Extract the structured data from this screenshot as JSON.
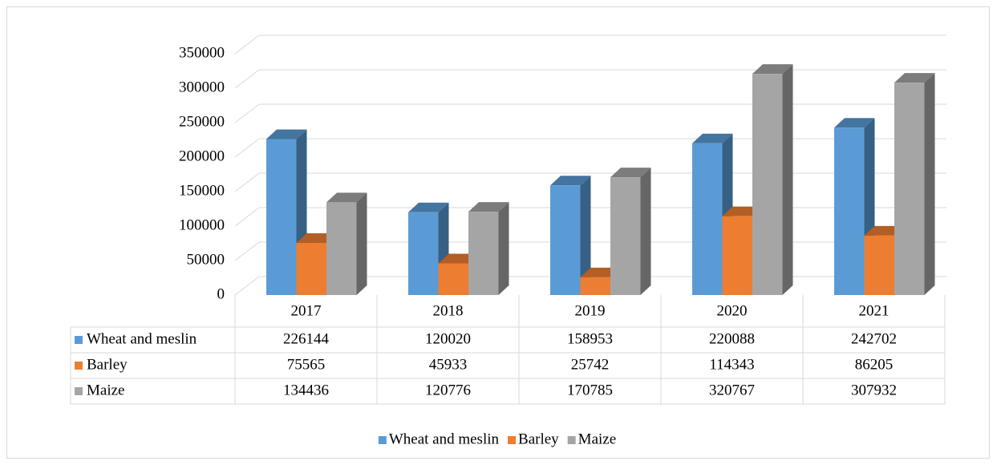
{
  "chart_data": {
    "type": "bar3d",
    "categories": [
      "2017",
      "2018",
      "2019",
      "2020",
      "2021"
    ],
    "series": [
      {
        "name": "Wheat and meslin",
        "color": "#5b9bd5",
        "values": [
          226144,
          120020,
          158953,
          220088,
          242702
        ]
      },
      {
        "name": "Barley",
        "color": "#ed7d31",
        "values": [
          75565,
          45933,
          25742,
          114343,
          86205
        ]
      },
      {
        "name": "Maize",
        "color": "#a5a5a5",
        "values": [
          134436,
          120776,
          170785,
          320767,
          307932
        ]
      }
    ],
    "ylim": [
      0,
      350000
    ],
    "yticks": [
      0,
      50000,
      100000,
      150000,
      200000,
      250000,
      300000,
      350000
    ],
    "grid": true,
    "legend": "bottom"
  }
}
